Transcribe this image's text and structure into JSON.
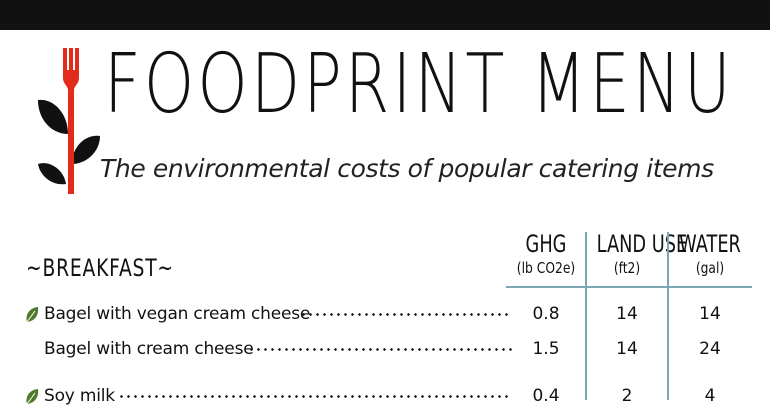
{
  "header": {
    "title": "FOODPRINT MENU",
    "subtitle": "The environmental costs of popular catering items"
  },
  "section": {
    "label": "~BREAKFAST~"
  },
  "columns": [
    {
      "label": "GHG",
      "unit": "(lb CO2e)"
    },
    {
      "label": "LAND USE",
      "unit": "(ft2)"
    },
    {
      "label": "WATER",
      "unit": "(gal)"
    }
  ],
  "items": [
    {
      "name": "Bagel with vegan cream cheese",
      "ghg": "0.8",
      "land": "14",
      "water": "14",
      "leaf": true
    },
    {
      "name": "Bagel with cream cheese",
      "ghg": "1.5",
      "land": "14",
      "water": "24",
      "leaf": false
    },
    {
      "name": "Soy milk",
      "ghg": "0.4",
      "land": "2",
      "water": "4",
      "leaf": true
    }
  ],
  "colors": {
    "accent": "#e32b1c",
    "leaf": "#111111",
    "rule": "#7aa7b3",
    "leaf_icon": "#4e7b2b"
  }
}
